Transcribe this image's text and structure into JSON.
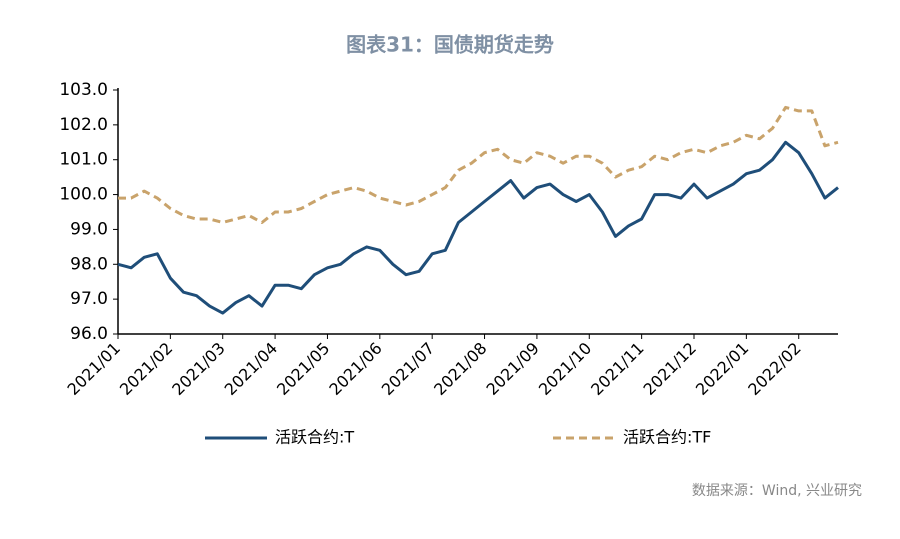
{
  "chart_data": {
    "type": "line",
    "title": "图表31：国债期货走势",
    "source": "数据来源：Wind, 兴业研究",
    "categories": [
      "2021/01",
      null,
      null,
      null,
      "2021/02",
      null,
      null,
      null,
      "2021/03",
      null,
      null,
      null,
      "2021/04",
      null,
      null,
      null,
      "2021/05",
      null,
      null,
      null,
      "2021/06",
      null,
      null,
      null,
      "2021/07",
      null,
      null,
      null,
      "2021/08",
      null,
      null,
      null,
      "2021/09",
      null,
      null,
      null,
      "2021/10",
      null,
      null,
      null,
      "2021/11",
      null,
      null,
      null,
      "2021/12",
      null,
      null,
      null,
      "2022/01",
      null,
      null,
      null,
      "2022/02",
      null,
      null,
      null
    ],
    "series": [
      {
        "name": "活跃合约:T",
        "color": "#1f4e79",
        "dashed": false,
        "values": [
          98.0,
          97.9,
          98.2,
          98.3,
          97.6,
          97.2,
          97.1,
          96.8,
          96.6,
          96.9,
          97.1,
          96.8,
          97.4,
          97.4,
          97.3,
          97.7,
          97.9,
          98.0,
          98.3,
          98.5,
          98.4,
          98.0,
          97.7,
          97.8,
          98.3,
          98.4,
          99.2,
          99.5,
          99.8,
          100.1,
          100.4,
          99.9,
          100.2,
          100.3,
          100.0,
          99.8,
          100.0,
          99.5,
          98.8,
          99.1,
          99.3,
          100.0,
          100.0,
          99.9,
          100.3,
          99.9,
          100.1,
          100.3,
          100.6,
          100.7,
          101.0,
          101.5,
          101.2,
          100.6,
          99.9,
          100.2
        ]
      },
      {
        "name": "活跃合约:TF",
        "color": "#c9a36b",
        "dashed": true,
        "values": [
          99.9,
          99.9,
          100.1,
          99.9,
          99.6,
          99.4,
          99.3,
          99.3,
          99.2,
          99.3,
          99.4,
          99.2,
          99.5,
          99.5,
          99.6,
          99.8,
          100.0,
          100.1,
          100.2,
          100.1,
          99.9,
          99.8,
          99.7,
          99.8,
          100.0,
          100.2,
          100.7,
          100.9,
          101.2,
          101.3,
          101.0,
          100.9,
          101.2,
          101.1,
          100.9,
          101.1,
          101.1,
          100.9,
          100.5,
          100.7,
          100.8,
          101.1,
          101.0,
          101.2,
          101.3,
          101.2,
          101.4,
          101.5,
          101.7,
          101.6,
          101.9,
          102.5,
          102.4,
          102.4,
          101.4,
          101.5
        ]
      }
    ],
    "ylim": [
      96,
      103
    ],
    "yticks": [
      {
        "value": 96,
        "label": "96.0"
      },
      {
        "value": 97,
        "label": "97.0"
      },
      {
        "value": 98,
        "label": "98.0"
      },
      {
        "value": 99,
        "label": "99.0"
      },
      {
        "value": 100,
        "label": "100.0"
      },
      {
        "value": 101,
        "label": "101.0"
      },
      {
        "value": 102,
        "label": "102.0"
      },
      {
        "value": 103,
        "label": "103.0"
      }
    ],
    "grid": false,
    "legend": "bottom"
  }
}
